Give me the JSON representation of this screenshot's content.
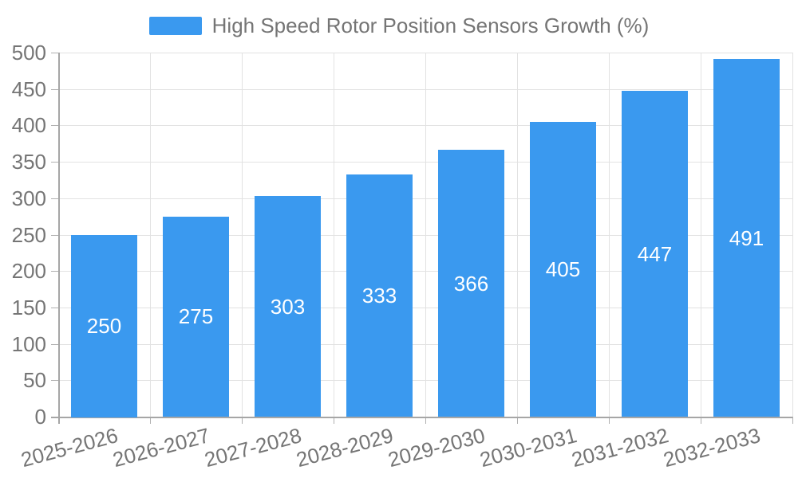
{
  "chart_data": {
    "type": "bar",
    "title": "High Speed Rotor Position Sensors Growth (%)",
    "categories": [
      "2025-2026",
      "2026-2027",
      "2027-2028",
      "2028-2029",
      "2029-2030",
      "2030-2031",
      "2031-2032",
      "2032-2033"
    ],
    "values": [
      250,
      275,
      303,
      333,
      366,
      405,
      447,
      491
    ],
    "series": [
      {
        "name": "High Speed Rotor Position Sensors Growth (%)",
        "values": [
          250,
          275,
          303,
          333,
          366,
          405,
          447,
          491
        ]
      }
    ],
    "xlabel": "",
    "ylabel": "",
    "ylim": [
      0,
      500
    ],
    "ytick_step": 50,
    "yticks": [
      0,
      50,
      100,
      150,
      200,
      250,
      300,
      350,
      400,
      450,
      500
    ],
    "grid": true,
    "legend_position": "top",
    "bar_label_position": "inside-center",
    "colors": {
      "bar": "#3a99ef",
      "bar_label": "#ffffff",
      "axis": "#a6a6a6",
      "tick": "#b0b0b0",
      "grid": "#e2e2e2",
      "text": "#757575",
      "background": "#ffffff"
    }
  }
}
